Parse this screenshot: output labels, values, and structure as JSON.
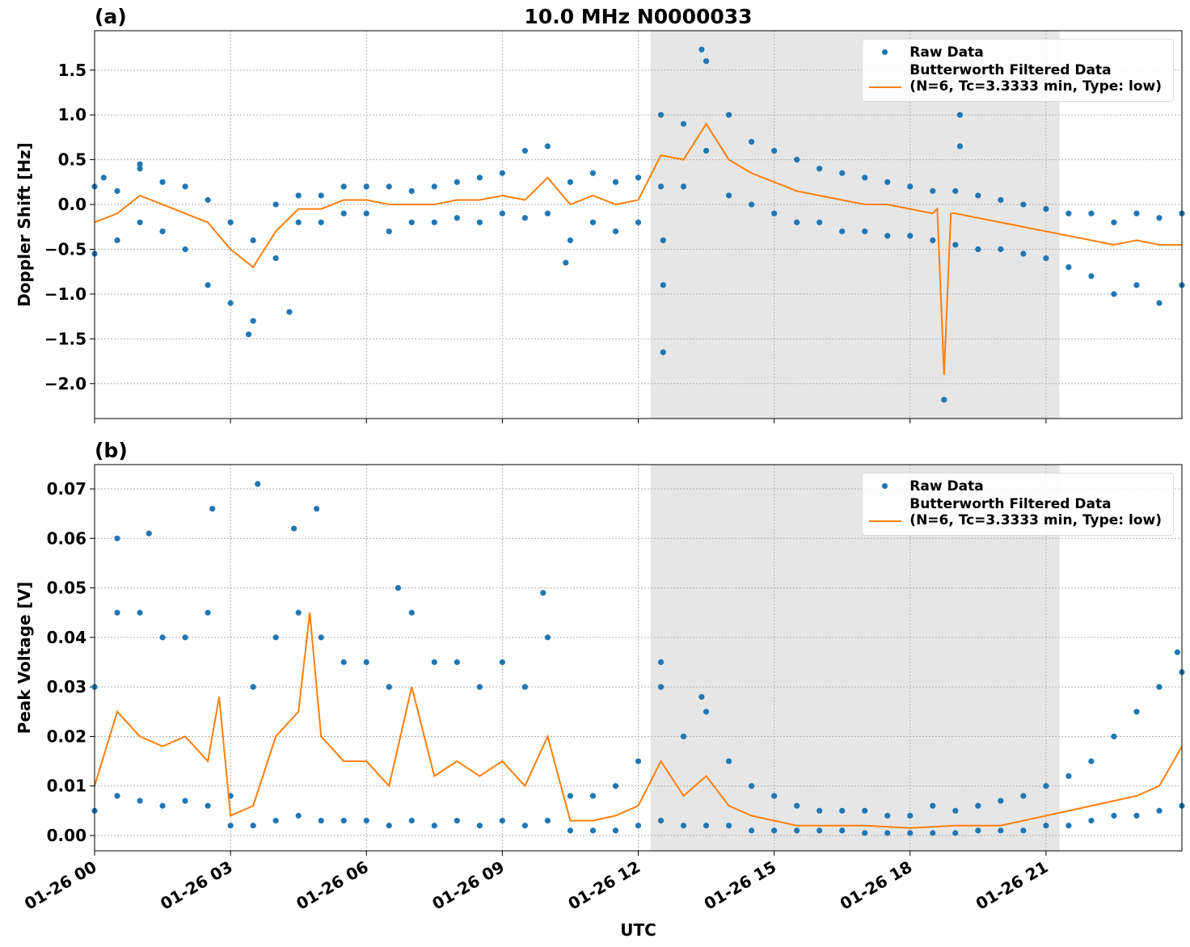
{
  "chart_data": [
    {
      "type": "line",
      "title": "10.0 MHz N0000033",
      "panel_label": "(a)",
      "ylabel": "Doppler Shift [Hz]",
      "xlim": [
        0,
        24
      ],
      "xticks": [
        0,
        3,
        6,
        9,
        12,
        15,
        18,
        21
      ],
      "ylim": [
        -2.39,
        1.94
      ],
      "yticks": [
        {
          "value": -2,
          "label": "−2.0"
        },
        {
          "value": -1.5,
          "label": "−1.5"
        },
        {
          "value": -1,
          "label": "−1.0"
        },
        {
          "value": -0.5,
          "label": "−0.5"
        },
        {
          "value": 0,
          "label": "0.0"
        },
        0.5,
        {
          "value": 1,
          "label": "1.0"
        },
        1.5
      ],
      "grid": true,
      "legend": "upper right",
      "shaded_span": [
        12.27,
        21.3
      ],
      "shade_color": "#e6e6e6",
      "series": [
        {
          "name": "Raw Data",
          "style": "points",
          "color": "#1f77b4",
          "x": [
            0,
            0,
            0.5,
            0.5,
            1,
            1,
            1.5,
            1.5,
            2,
            2,
            2.5,
            2.5,
            3,
            3,
            3.5,
            3.5,
            4,
            4,
            4.5,
            4.5,
            5,
            5,
            5.5,
            5.5,
            6,
            6,
            6.5,
            6.5,
            7,
            7,
            7.5,
            7.5,
            8,
            8,
            8.5,
            8.5,
            9,
            9,
            9.5,
            9.5,
            10,
            10,
            10.5,
            10.5,
            11,
            11,
            11.5,
            11.5,
            12,
            12,
            12.5,
            12.5,
            13,
            13,
            13.5,
            13.5,
            14,
            14,
            14.5,
            14.5,
            15,
            15,
            15.5,
            15.5,
            16,
            16,
            16.5,
            16.5,
            17,
            17,
            17.5,
            17.5,
            18,
            18,
            18.5,
            18.5,
            19,
            19,
            19.5,
            19.5,
            20,
            20,
            20.5,
            20.5,
            21,
            21,
            21.5,
            21.5,
            22,
            22,
            22.5,
            22.5,
            23,
            23,
            23.5,
            23.5,
            24,
            24,
            12.55,
            12.55,
            12.55,
            19.1,
            19.1,
            13.4,
            18.75,
            3.4,
            4.3,
            10.4,
            1.0,
            0.2
          ],
          "values": [
            0.2,
            -0.55,
            0.15,
            -0.4,
            0.4,
            -0.2,
            0.25,
            -0.3,
            0.2,
            -0.5,
            0.05,
            -0.9,
            -0.2,
            -1.1,
            -0.4,
            -1.3,
            0.0,
            -0.6,
            0.1,
            -0.2,
            0.1,
            -0.2,
            0.2,
            -0.1,
            0.2,
            -0.1,
            0.2,
            -0.3,
            0.15,
            -0.2,
            0.2,
            -0.2,
            0.25,
            -0.15,
            0.3,
            -0.2,
            0.35,
            -0.1,
            0.6,
            -0.15,
            0.65,
            -0.1,
            0.25,
            -0.4,
            0.35,
            -0.2,
            0.25,
            -0.3,
            0.3,
            -0.2,
            1.0,
            0.2,
            0.9,
            0.2,
            1.6,
            0.6,
            1.0,
            0.1,
            0.7,
            0.0,
            0.6,
            -0.1,
            0.5,
            -0.2,
            0.4,
            -0.2,
            0.35,
            -0.3,
            0.3,
            -0.3,
            0.25,
            -0.35,
            0.2,
            -0.35,
            0.15,
            -0.4,
            0.15,
            -0.45,
            0.1,
            -0.5,
            0.05,
            -0.5,
            0.0,
            -0.55,
            -0.05,
            -0.6,
            -0.1,
            -0.7,
            -0.1,
            -0.8,
            -0.2,
            -1.0,
            -0.1,
            -0.9,
            -0.15,
            -1.1,
            -0.1,
            -0.9,
            -0.9,
            -1.65,
            -0.4,
            1.0,
            0.65,
            1.73,
            -2.18,
            -1.45,
            -1.2,
            -0.65,
            0.45,
            0.3
          ]
        },
        {
          "name": "Butterworth Filtered Data\n(N=6, Tc=3.3333 min, Type: low)",
          "style": "line",
          "color": "#ff7f0e",
          "x": [
            0,
            0.5,
            1,
            1.5,
            2,
            2.5,
            3,
            3.5,
            4,
            4.5,
            5,
            5.5,
            6,
            6.5,
            7,
            7.5,
            8,
            8.5,
            9,
            9.5,
            10,
            10.5,
            11,
            11.5,
            12,
            12.5,
            13,
            13.5,
            14,
            14.5,
            15,
            15.5,
            16,
            16.5,
            17,
            17.5,
            18,
            18.5,
            18.6,
            18.75,
            18.9,
            19,
            19.5,
            20,
            20.5,
            21,
            21.5,
            22,
            22.5,
            23,
            23.5,
            24
          ],
          "values": [
            -0.2,
            -0.1,
            0.1,
            0.0,
            -0.1,
            -0.2,
            -0.5,
            -0.7,
            -0.3,
            -0.05,
            -0.05,
            0.05,
            0.05,
            0.0,
            0.0,
            0.0,
            0.05,
            0.05,
            0.1,
            0.05,
            0.3,
            0.0,
            0.1,
            0.0,
            0.05,
            0.55,
            0.5,
            0.9,
            0.5,
            0.35,
            0.25,
            0.15,
            0.1,
            0.05,
            0.0,
            0.0,
            -0.05,
            -0.1,
            -0.05,
            -1.9,
            -0.1,
            -0.1,
            -0.15,
            -0.2,
            -0.25,
            -0.3,
            -0.35,
            -0.4,
            -0.45,
            -0.4,
            -0.45,
            -0.45
          ]
        }
      ]
    },
    {
      "type": "line",
      "panel_label": "(b)",
      "ylabel": "Peak Voltage [V]",
      "xlabel": "UTC",
      "xlim": [
        0,
        24
      ],
      "xticks": [
        {
          "value": 0,
          "label": "01-26 00"
        },
        {
          "value": 3,
          "label": "01-26 03"
        },
        {
          "value": 6,
          "label": "01-26 06"
        },
        {
          "value": 9,
          "label": "01-26 09"
        },
        {
          "value": 12,
          "label": "01-26 12"
        },
        {
          "value": 15,
          "label": "01-26 15"
        },
        {
          "value": 18,
          "label": "01-26 18"
        },
        {
          "value": 21,
          "label": "01-26 21"
        }
      ],
      "ylim": [
        -0.0031,
        0.0749
      ],
      "yticks": [
        {
          "value": 0,
          "label": "0.00"
        },
        0.01,
        0.02,
        0.03,
        0.04,
        0.05,
        0.06,
        0.07
      ],
      "grid": true,
      "legend": "upper right",
      "shaded_span": [
        12.27,
        21.3
      ],
      "shade_color": "#e6e6e6",
      "series": [
        {
          "name": "Raw Data",
          "style": "points",
          "color": "#1f77b4",
          "x": [
            0,
            0,
            0.5,
            0.5,
            1,
            1,
            1.5,
            1.5,
            2,
            2,
            2.5,
            2.5,
            3,
            3,
            3.5,
            3.5,
            4,
            4,
            4.5,
            4.5,
            5,
            5,
            5.5,
            5.5,
            6,
            6,
            6.5,
            6.5,
            7,
            7,
            7.5,
            7.5,
            8,
            8,
            8.5,
            8.5,
            9,
            9,
            9.5,
            9.5,
            10,
            10,
            10.5,
            10.5,
            11,
            11,
            11.5,
            11.5,
            12,
            12,
            12.5,
            12.5,
            13,
            13,
            13.5,
            13.5,
            14,
            14,
            14.5,
            14.5,
            15,
            15,
            15.5,
            15.5,
            16,
            16,
            16.5,
            16.5,
            17,
            17,
            17.5,
            17.5,
            18,
            18,
            18.5,
            18.5,
            19,
            19,
            19.5,
            19.5,
            20,
            20,
            20.5,
            20.5,
            21,
            21,
            21.5,
            21.5,
            22,
            22,
            22.5,
            22.5,
            23,
            23,
            23.5,
            23.5,
            24,
            24,
            3.6,
            2.6,
            4.9,
            1.2,
            0.5,
            4.4,
            6.7,
            9.9,
            12.5,
            13.4,
            23.9
          ],
          "values": [
            0.03,
            0.005,
            0.045,
            0.008,
            0.045,
            0.007,
            0.04,
            0.006,
            0.04,
            0.007,
            0.045,
            0.006,
            0.008,
            0.002,
            0.03,
            0.002,
            0.04,
            0.003,
            0.045,
            0.004,
            0.04,
            0.003,
            0.035,
            0.003,
            0.035,
            0.003,
            0.03,
            0.002,
            0.045,
            0.003,
            0.035,
            0.002,
            0.035,
            0.003,
            0.03,
            0.002,
            0.035,
            0.003,
            0.03,
            0.002,
            0.04,
            0.003,
            0.008,
            0.001,
            0.008,
            0.001,
            0.01,
            0.001,
            0.015,
            0.002,
            0.03,
            0.003,
            0.02,
            0.002,
            0.025,
            0.002,
            0.015,
            0.002,
            0.01,
            0.001,
            0.008,
            0.001,
            0.006,
            0.001,
            0.005,
            0.001,
            0.005,
            0.001,
            0.005,
            0.0005,
            0.004,
            0.0005,
            0.004,
            0.0005,
            0.006,
            0.0005,
            0.005,
            0.0005,
            0.006,
            0.001,
            0.007,
            0.001,
            0.008,
            0.001,
            0.01,
            0.002,
            0.012,
            0.002,
            0.015,
            0.003,
            0.02,
            0.004,
            0.025,
            0.004,
            0.03,
            0.005,
            0.033,
            0.006,
            0.071,
            0.066,
            0.066,
            0.061,
            0.06,
            0.062,
            0.05,
            0.049,
            0.035,
            0.028,
            0.037
          ]
        },
        {
          "name": "Butterworth Filtered Data\n(N=6, Tc=3.3333 min, Type: low)",
          "style": "line",
          "color": "#ff7f0e",
          "x": [
            0,
            0.5,
            1,
            1.5,
            2,
            2.5,
            2.75,
            3,
            3.5,
            4,
            4.5,
            4.75,
            5,
            5.5,
            6,
            6.5,
            7,
            7.5,
            8,
            8.5,
            9,
            9.5,
            10,
            10.5,
            11,
            11.5,
            12,
            12.5,
            13,
            13.5,
            14,
            14.5,
            15,
            15.5,
            16,
            17,
            18,
            19,
            20,
            21,
            22,
            23,
            23.5,
            24
          ],
          "values": [
            0.01,
            0.025,
            0.02,
            0.018,
            0.02,
            0.015,
            0.028,
            0.004,
            0.006,
            0.02,
            0.025,
            0.045,
            0.02,
            0.015,
            0.015,
            0.01,
            0.03,
            0.012,
            0.015,
            0.012,
            0.015,
            0.01,
            0.02,
            0.003,
            0.003,
            0.004,
            0.006,
            0.015,
            0.008,
            0.012,
            0.006,
            0.004,
            0.003,
            0.002,
            0.002,
            0.002,
            0.0015,
            0.002,
            0.002,
            0.004,
            0.006,
            0.008,
            0.01,
            0.018
          ]
        }
      ]
    }
  ]
}
